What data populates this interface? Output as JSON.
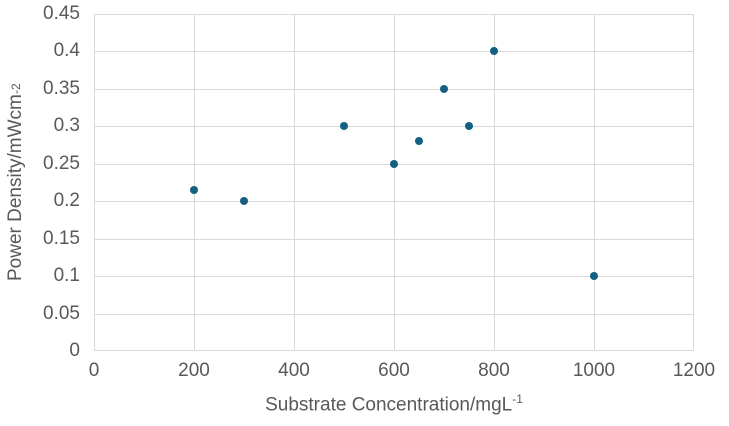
{
  "chart_data": {
    "type": "scatter",
    "title": "",
    "xlabel_base": "Substrate Concentration/mgL",
    "xlabel_exp": "-1",
    "ylabel_base": "Power Density/mWcm",
    "ylabel_exp": "-2",
    "xlim": [
      0,
      1200
    ],
    "ylim": [
      0,
      0.45
    ],
    "grid": true,
    "legend_position": "none",
    "marker_color": "#156082",
    "gridline_color": "#D9D9D9",
    "axis_text_color": "#595959",
    "background_color": "#FFFFFF",
    "x_ticks": [
      {
        "value": 0,
        "label": "0"
      },
      {
        "value": 200,
        "label": "200"
      },
      {
        "value": 400,
        "label": "400"
      },
      {
        "value": 600,
        "label": "600"
      },
      {
        "value": 800,
        "label": "800"
      },
      {
        "value": 1000,
        "label": "1000"
      },
      {
        "value": 1200,
        "label": "1200"
      }
    ],
    "y_ticks": [
      {
        "value": 0,
        "label": "0"
      },
      {
        "value": 0.05,
        "label": "0.05"
      },
      {
        "value": 0.1,
        "label": "0.1"
      },
      {
        "value": 0.15,
        "label": "0.15"
      },
      {
        "value": 0.2,
        "label": "0.2"
      },
      {
        "value": 0.25,
        "label": "0.25"
      },
      {
        "value": 0.3,
        "label": "0.3"
      },
      {
        "value": 0.35,
        "label": "0.35"
      },
      {
        "value": 0.4,
        "label": "0.4"
      },
      {
        "value": 0.45,
        "label": "0.45"
      }
    ],
    "points": [
      {
        "x": 200,
        "y": 0.215
      },
      {
        "x": 300,
        "y": 0.2
      },
      {
        "x": 500,
        "y": 0.3
      },
      {
        "x": 600,
        "y": 0.25
      },
      {
        "x": 650,
        "y": 0.28
      },
      {
        "x": 700,
        "y": 0.35
      },
      {
        "x": 750,
        "y": 0.3
      },
      {
        "x": 800,
        "y": 0.4
      },
      {
        "x": 1000,
        "y": 0.1
      }
    ]
  }
}
